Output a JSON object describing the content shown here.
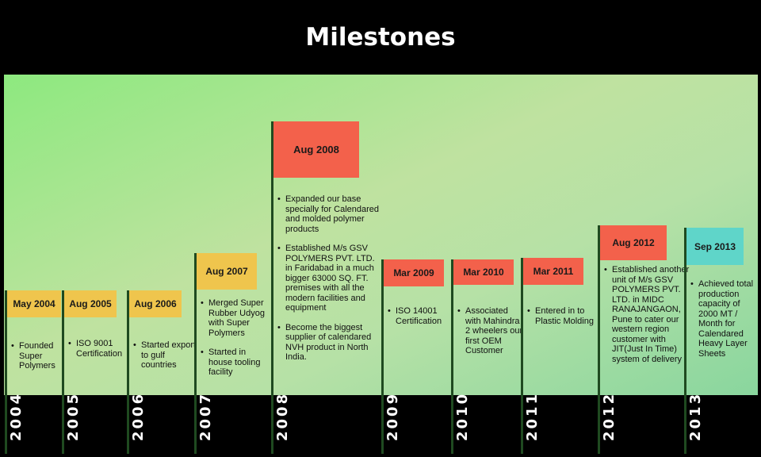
{
  "title": "Milestones",
  "milestones": [
    {
      "year": "2004",
      "date": "May 2004",
      "color": "yellow",
      "notes": [
        "Founded Super Polymers"
      ]
    },
    {
      "year": "2005",
      "date": "Aug 2005",
      "color": "yellow",
      "notes": [
        "ISO 9001 Certification"
      ]
    },
    {
      "year": "2006",
      "date": "Aug 2006",
      "color": "yellow",
      "notes": [
        "Started export to gulf countries"
      ]
    },
    {
      "year": "2007",
      "date": "Aug 2007",
      "color": "yellow",
      "notes": [
        "Merged Super Rubber Udyog with Super Polymers",
        "Started in house tooling facility"
      ]
    },
    {
      "year": "2008",
      "date": "Aug 2008",
      "color": "red",
      "notes": [
        "Expanded our base specially for Calendared and molded polymer products",
        "Established M/s GSV POLYMERS PVT. LTD. in Faridabad in a much bigger 63000 SQ. FT. premises with all the modern facilities and equipment",
        "Become the biggest supplier of calendared NVH product in North India."
      ]
    },
    {
      "year": "2009",
      "date": "Mar 2009",
      "color": "red",
      "notes": [
        "ISO 14001 Certification"
      ]
    },
    {
      "year": "2010",
      "date": "Mar 2010",
      "color": "red",
      "notes": [
        "Associated with Mahindra 2 wheelers our first OEM Customer"
      ]
    },
    {
      "year": "2011",
      "date": "Mar 2011",
      "color": "red",
      "notes": [
        "Entered in to Plastic Molding"
      ]
    },
    {
      "year": "2012",
      "date": "Aug 2012",
      "color": "red",
      "notes": [
        "Established another unit of M/s GSV POLYMERS PVT. LTD. in MIDC RANAJANGAON, Pune to cater our western region customer with JIT(Just In Time) system of delivery"
      ]
    },
    {
      "year": "2013",
      "date": "Sep 2013",
      "color": "teal",
      "notes": [
        "Achieved total production capacity of 2000 MT / Month for Calendared Heavy Layer Sheets"
      ]
    }
  ]
}
